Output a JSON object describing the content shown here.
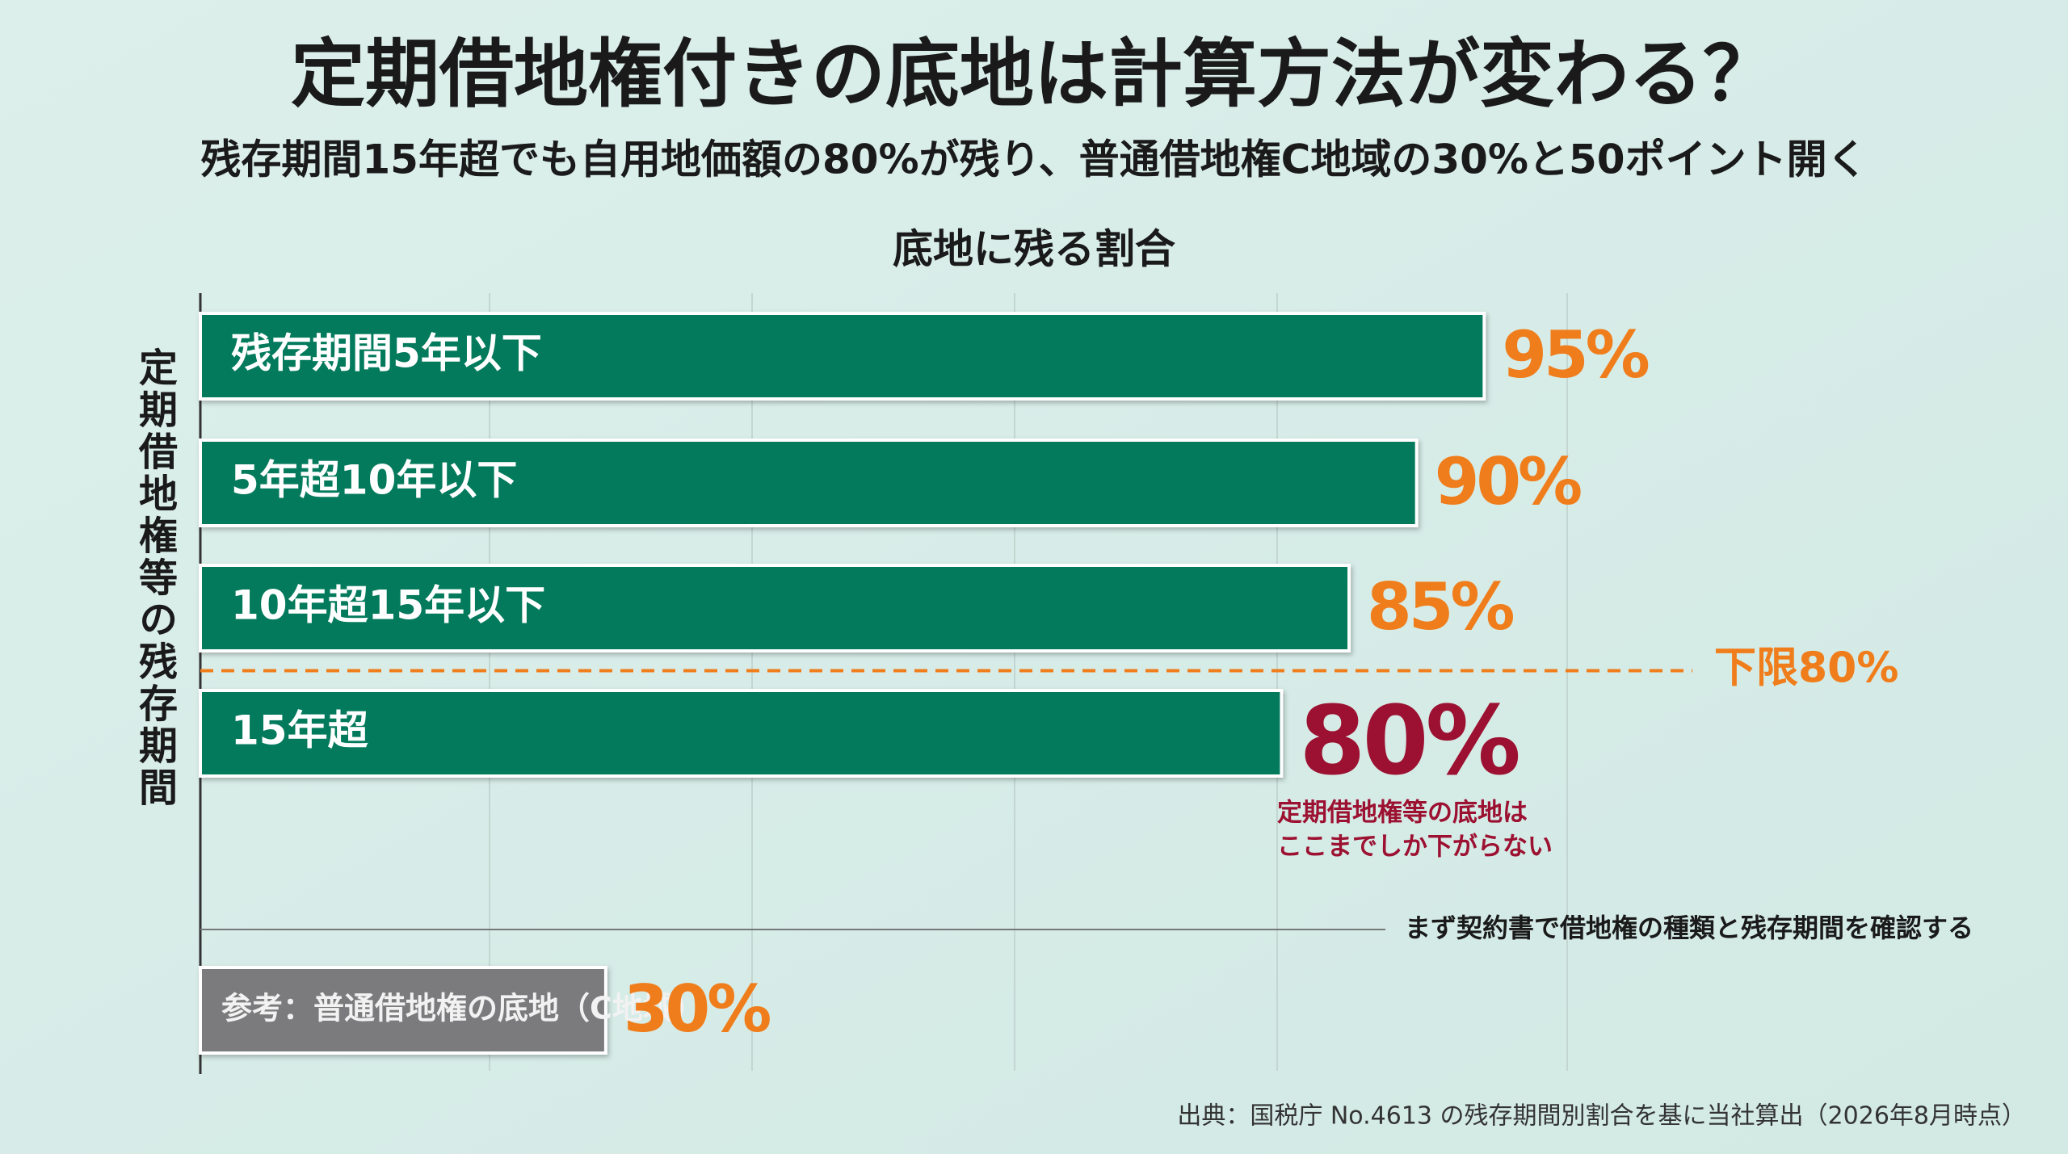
{
  "chart_data": {
    "type": "bar",
    "orientation": "horizontal",
    "title": "定期借地権付きの底地は計算方法が変わる？",
    "subtitle": "残存期間15年超でも自用地価額の80%が残り、普通借地権C地域の30%と50ポイント開く",
    "chart_title": "底地に残る割合",
    "y_label": "定期借地権等の残存期間",
    "categories": [
      "残存期間5年以下",
      "5年超10年以下",
      "10年超15年以下",
      "15年超",
      "参考：普通借地権の底地（C地域）"
    ],
    "values": [
      95,
      90,
      85,
      80,
      30
    ],
    "value_labels": [
      "95%",
      "90%",
      "85%",
      "80%",
      "30%"
    ],
    "colors": [
      "#037a5c",
      "#037a5c",
      "#037a5c",
      "#037a5c",
      "#7b7b7d"
    ],
    "label_colors": [
      "#f07d1b",
      "#f07d1b",
      "#f07d1b",
      "#9c1131",
      "#f07d1b"
    ],
    "xlim": [
      0,
      100
    ],
    "threshold": {
      "value": 80,
      "label": "下限80%",
      "color": "#f07d1b"
    },
    "annotation": [
      "定期借地権等の底地は",
      "ここまでしか下がらない"
    ],
    "note": "まず契約書で借地権の種類と残存期間を確認する",
    "source": "出典：国税庁 No.4613 の残存期間別割合を基に当社算出（2026年8月時点）"
  }
}
